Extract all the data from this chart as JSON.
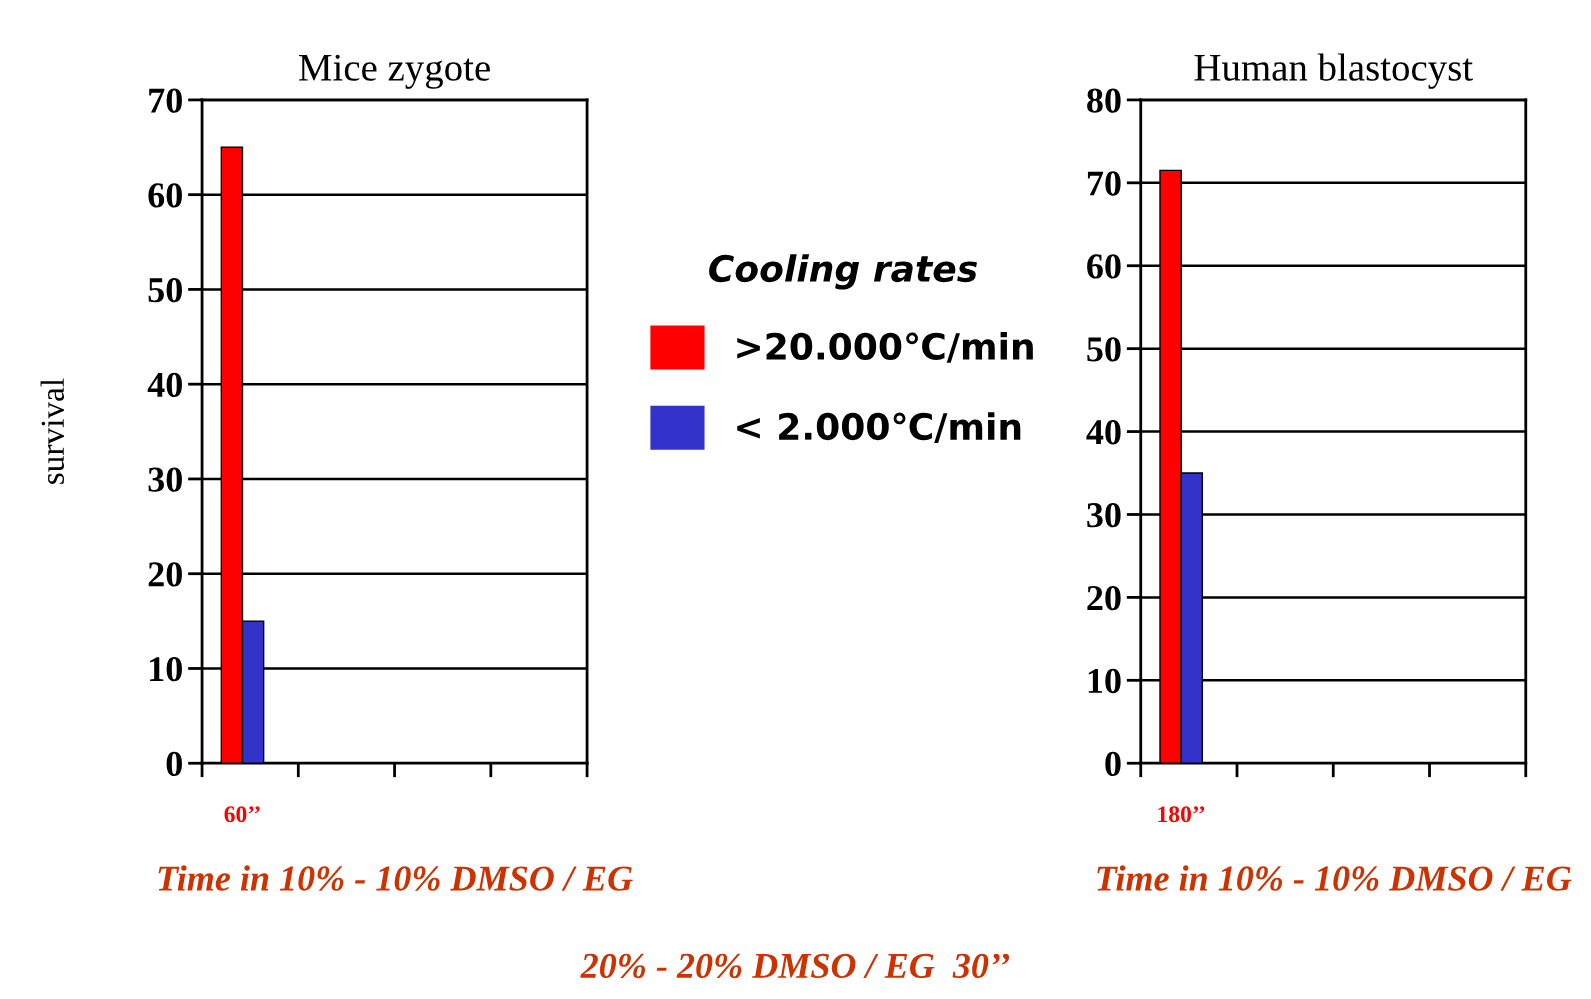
{
  "chart_data": [
    {
      "type": "bar",
      "title": "Mice zygote",
      "ylabel": "survival",
      "xlabel": "Time in 10% - 10% DMSO / EG",
      "categories": [
        "60’’",
        null,
        null,
        null
      ],
      "series": [
        {
          "name": ">20.000℃/min",
          "color": "#ff0000",
          "values": [
            65,
            null,
            null,
            null
          ]
        },
        {
          "name": "< 2.000℃/min",
          "color": "#3333cc",
          "values": [
            15,
            null,
            null,
            null
          ]
        }
      ],
      "ylim": [
        0,
        70
      ],
      "yticks": [
        0,
        10,
        20,
        30,
        40,
        50,
        60,
        70
      ],
      "grid": "y",
      "legend": "right",
      "legend_title": "Cooling rates",
      "annotations": [
        "20% - 20% DMSO / EG  30’’"
      ]
    },
    {
      "type": "bar",
      "title": "Human blastocyst",
      "xlabel": "Time in 10% - 10% DMSO / EG",
      "categories": [
        "180’’",
        null,
        null,
        null
      ],
      "series": [
        {
          "color": "#ff0000",
          "values": [
            71.5,
            null,
            null,
            null
          ]
        },
        {
          "color": "#3333cc",
          "values": [
            35,
            null,
            null,
            null
          ]
        }
      ],
      "ylim": [
        0,
        80
      ],
      "yticks": [
        0,
        10,
        20,
        30,
        40,
        50,
        60,
        70,
        80
      ],
      "grid": "y"
    }
  ]
}
